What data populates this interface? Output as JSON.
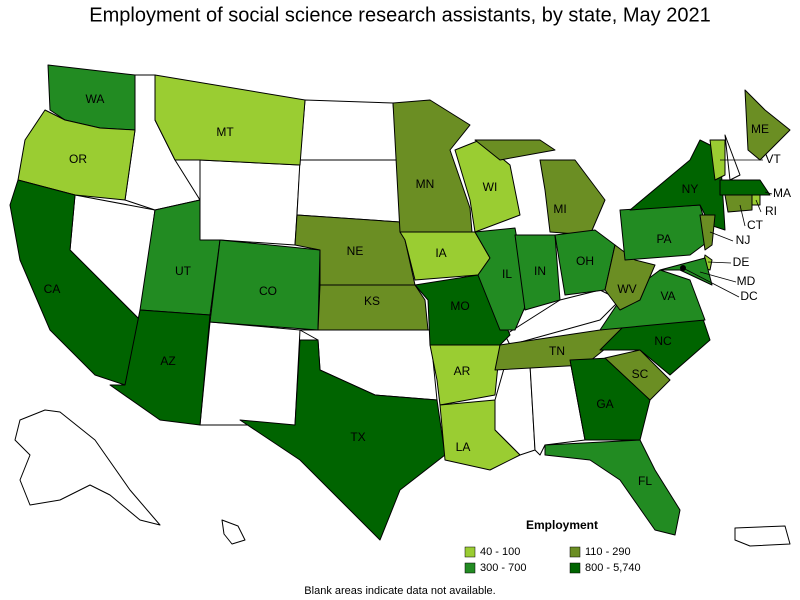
{
  "title": "Employment of social science research assistants, by state, May 2021",
  "note": "Blank areas indicate data not available.",
  "legend": {
    "title": "Employment",
    "classes": [
      {
        "label": "40 - 100",
        "color": "#9acd32"
      },
      {
        "label": "110 - 290",
        "color": "#6b8e23"
      },
      {
        "label": "300 - 700",
        "color": "#228b22"
      },
      {
        "label": "800 - 5,740",
        "color": "#006400"
      }
    ]
  },
  "states": [
    {
      "label": "WA",
      "class": 2
    },
    {
      "label": "OR",
      "class": 0
    },
    {
      "label": "CA",
      "class": 3
    },
    {
      "label": "MT",
      "class": 0
    },
    {
      "label": "UT",
      "class": 2
    },
    {
      "label": "CO",
      "class": 2
    },
    {
      "label": "AZ",
      "class": 3
    },
    {
      "label": "NE",
      "class": 1
    },
    {
      "label": "KS",
      "class": 1
    },
    {
      "label": "TX",
      "class": 3
    },
    {
      "label": "MN",
      "class": 1
    },
    {
      "label": "IA",
      "class": 0
    },
    {
      "label": "MO",
      "class": 3
    },
    {
      "label": "AR",
      "class": 0
    },
    {
      "label": "LA",
      "class": 0
    },
    {
      "label": "WI",
      "class": 0
    },
    {
      "label": "IL",
      "class": 2
    },
    {
      "label": "IN",
      "class": 2
    },
    {
      "label": "MI",
      "class": 1
    },
    {
      "label": "OH",
      "class": 2
    },
    {
      "label": "TN",
      "class": 1
    },
    {
      "label": "GA",
      "class": 3
    },
    {
      "label": "FL",
      "class": 2
    },
    {
      "label": "SC",
      "class": 1
    },
    {
      "label": "NC",
      "class": 3
    },
    {
      "label": "VA",
      "class": 2
    },
    {
      "label": "WV",
      "class": 1
    },
    {
      "label": "PA",
      "class": 2
    },
    {
      "label": "NY",
      "class": 3
    },
    {
      "label": "ME",
      "class": 1
    },
    {
      "label": "VT",
      "class": 0
    },
    {
      "label": "MA",
      "class": 3
    },
    {
      "label": "RI",
      "class": 0
    },
    {
      "label": "CT",
      "class": 1
    },
    {
      "label": "NJ",
      "class": 1
    },
    {
      "label": "DE",
      "class": 0
    },
    {
      "label": "MD",
      "class": 2
    },
    {
      "label": "DC",
      "class": 3
    }
  ]
}
